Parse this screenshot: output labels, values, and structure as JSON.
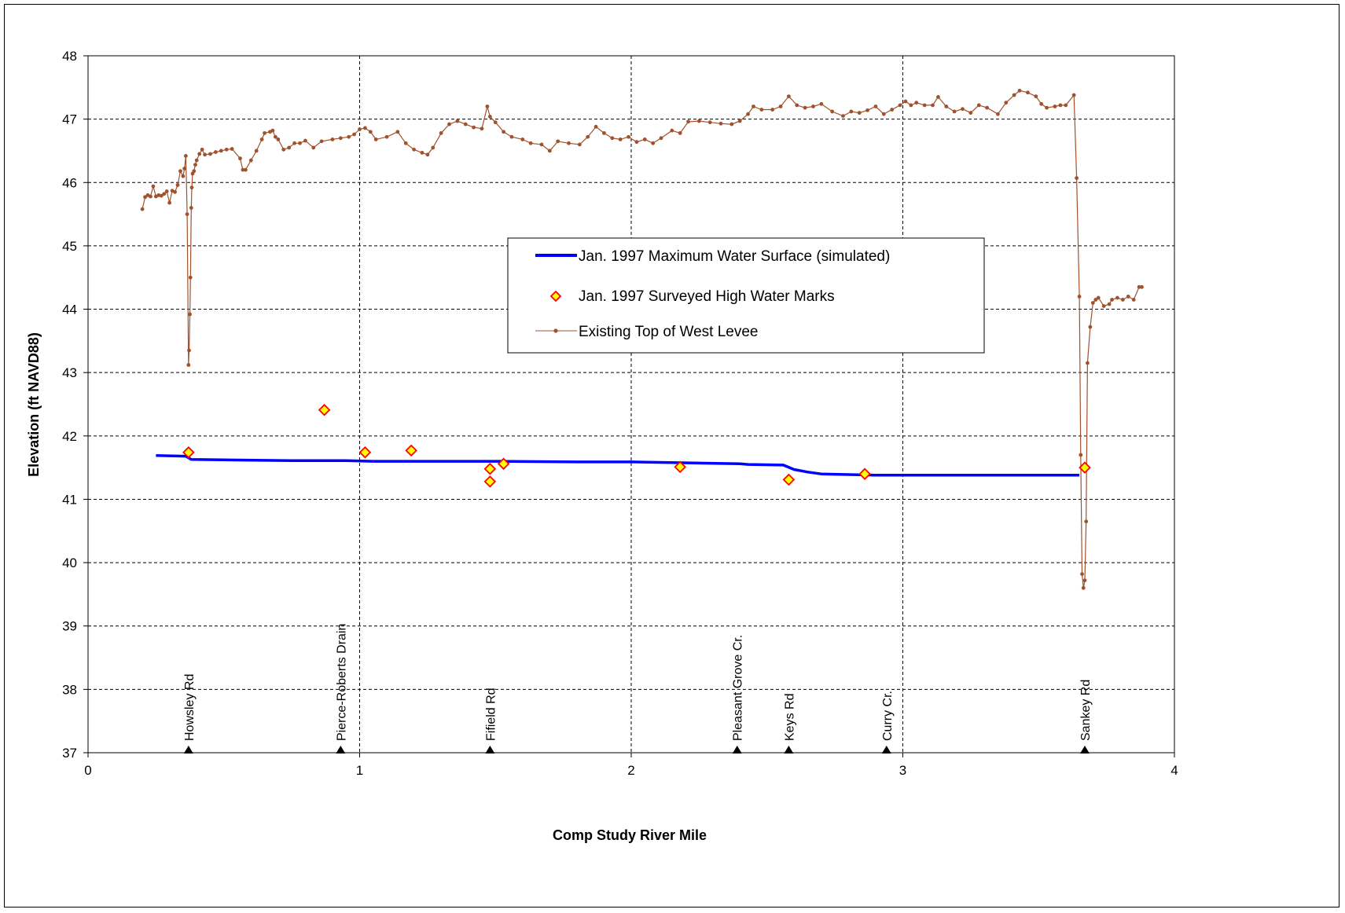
{
  "chart_data": {
    "type": "line",
    "title": "",
    "xlabel": "Comp Study River Mile",
    "ylabel": "Elevation (ft NAVD88)",
    "xlim": [
      0,
      4
    ],
    "ylim": [
      37,
      48
    ],
    "xticks": [
      0,
      1,
      2,
      3,
      4
    ],
    "yticks": [
      37,
      38,
      39,
      40,
      41,
      42,
      43,
      44,
      45,
      46,
      47,
      48
    ],
    "grid": true,
    "legend_position": "center-right",
    "series": [
      {
        "name": "Jan. 1997 Maximum Water Surface (simulated)",
        "style": "line",
        "color": "#0000ff",
        "points": [
          [
            0.25,
            41.69
          ],
          [
            0.36,
            41.68
          ],
          [
            0.38,
            41.63
          ],
          [
            0.55,
            41.62
          ],
          [
            0.75,
            41.61
          ],
          [
            0.95,
            41.61
          ],
          [
            1.05,
            41.6
          ],
          [
            1.5,
            41.6
          ],
          [
            1.8,
            41.59
          ],
          [
            2.0,
            41.59
          ],
          [
            2.4,
            41.56
          ],
          [
            2.43,
            41.55
          ],
          [
            2.56,
            41.54
          ],
          [
            2.6,
            41.47
          ],
          [
            2.65,
            41.43
          ],
          [
            2.7,
            41.4
          ],
          [
            2.8,
            41.39
          ],
          [
            2.9,
            41.38
          ],
          [
            3.2,
            41.38
          ],
          [
            3.5,
            41.38
          ],
          [
            3.65,
            41.38
          ]
        ]
      },
      {
        "name": "Jan. 1997 Surveyed High Water Marks",
        "style": "marker",
        "color": "#ffff00",
        "edge_color": "#ff0000",
        "points": [
          [
            0.37,
            41.74
          ],
          [
            0.87,
            42.41
          ],
          [
            1.02,
            41.74
          ],
          [
            1.19,
            41.77
          ],
          [
            1.48,
            41.48
          ],
          [
            1.48,
            41.28
          ],
          [
            1.53,
            41.56
          ],
          [
            2.18,
            41.51
          ],
          [
            2.58,
            41.31
          ],
          [
            2.86,
            41.4
          ],
          [
            3.67,
            41.5
          ]
        ]
      },
      {
        "name": "Existing Top of West Levee",
        "style": "line-marker",
        "color": "#a0522d",
        "points": [
          [
            0.2,
            45.58
          ],
          [
            0.21,
            45.77
          ],
          [
            0.22,
            45.8
          ],
          [
            0.23,
            45.78
          ],
          [
            0.24,
            45.94
          ],
          [
            0.25,
            45.78
          ],
          [
            0.26,
            45.8
          ],
          [
            0.27,
            45.79
          ],
          [
            0.28,
            45.82
          ],
          [
            0.29,
            45.86
          ],
          [
            0.3,
            45.68
          ],
          [
            0.31,
            45.87
          ],
          [
            0.32,
            45.85
          ],
          [
            0.33,
            45.96
          ],
          [
            0.34,
            46.18
          ],
          [
            0.35,
            46.1
          ],
          [
            0.355,
            46.22
          ],
          [
            0.36,
            46.42
          ],
          [
            0.365,
            45.5
          ],
          [
            0.37,
            43.12
          ],
          [
            0.372,
            43.35
          ],
          [
            0.375,
            43.92
          ],
          [
            0.377,
            44.5
          ],
          [
            0.38,
            45.6
          ],
          [
            0.382,
            45.92
          ],
          [
            0.385,
            46.14
          ],
          [
            0.39,
            46.18
          ],
          [
            0.395,
            46.28
          ],
          [
            0.4,
            46.35
          ],
          [
            0.41,
            46.45
          ],
          [
            0.42,
            46.52
          ],
          [
            0.43,
            46.44
          ],
          [
            0.45,
            46.45
          ],
          [
            0.47,
            46.48
          ],
          [
            0.49,
            46.5
          ],
          [
            0.51,
            46.52
          ],
          [
            0.53,
            46.53
          ],
          [
            0.56,
            46.38
          ],
          [
            0.57,
            46.2
          ],
          [
            0.58,
            46.2
          ],
          [
            0.6,
            46.35
          ],
          [
            0.62,
            46.5
          ],
          [
            0.64,
            46.68
          ],
          [
            0.65,
            46.78
          ],
          [
            0.67,
            46.8
          ],
          [
            0.68,
            46.82
          ],
          [
            0.69,
            46.72
          ],
          [
            0.7,
            46.68
          ],
          [
            0.72,
            46.52
          ],
          [
            0.74,
            46.55
          ],
          [
            0.76,
            46.62
          ],
          [
            0.78,
            46.62
          ],
          [
            0.8,
            46.66
          ],
          [
            0.83,
            46.55
          ],
          [
            0.86,
            46.65
          ],
          [
            0.9,
            46.68
          ],
          [
            0.93,
            46.7
          ],
          [
            0.96,
            46.72
          ],
          [
            0.98,
            46.76
          ],
          [
            1.0,
            46.84
          ],
          [
            1.02,
            46.86
          ],
          [
            1.04,
            46.8
          ],
          [
            1.06,
            46.68
          ],
          [
            1.1,
            46.72
          ],
          [
            1.14,
            46.8
          ],
          [
            1.17,
            46.62
          ],
          [
            1.2,
            46.52
          ],
          [
            1.23,
            46.47
          ],
          [
            1.25,
            46.44
          ],
          [
            1.27,
            46.55
          ],
          [
            1.3,
            46.78
          ],
          [
            1.33,
            46.92
          ],
          [
            1.36,
            46.97
          ],
          [
            1.39,
            46.92
          ],
          [
            1.42,
            46.87
          ],
          [
            1.45,
            46.85
          ],
          [
            1.47,
            47.2
          ],
          [
            1.48,
            47.04
          ],
          [
            1.5,
            46.95
          ],
          [
            1.53,
            46.8
          ],
          [
            1.56,
            46.72
          ],
          [
            1.6,
            46.68
          ],
          [
            1.63,
            46.62
          ],
          [
            1.67,
            46.6
          ],
          [
            1.7,
            46.5
          ],
          [
            1.73,
            46.65
          ],
          [
            1.77,
            46.62
          ],
          [
            1.81,
            46.6
          ],
          [
            1.84,
            46.72
          ],
          [
            1.87,
            46.88
          ],
          [
            1.9,
            46.78
          ],
          [
            1.93,
            46.7
          ],
          [
            1.96,
            46.68
          ],
          [
            1.99,
            46.72
          ],
          [
            2.02,
            46.64
          ],
          [
            2.05,
            46.68
          ],
          [
            2.08,
            46.62
          ],
          [
            2.11,
            46.7
          ],
          [
            2.15,
            46.82
          ],
          [
            2.18,
            46.78
          ],
          [
            2.21,
            46.96
          ],
          [
            2.25,
            46.97
          ],
          [
            2.29,
            46.95
          ],
          [
            2.33,
            46.93
          ],
          [
            2.37,
            46.92
          ],
          [
            2.4,
            46.97
          ],
          [
            2.43,
            47.08
          ],
          [
            2.45,
            47.2
          ],
          [
            2.48,
            47.15
          ],
          [
            2.52,
            47.15
          ],
          [
            2.55,
            47.2
          ],
          [
            2.58,
            47.36
          ],
          [
            2.61,
            47.22
          ],
          [
            2.64,
            47.18
          ],
          [
            2.67,
            47.2
          ],
          [
            2.7,
            47.24
          ],
          [
            2.74,
            47.12
          ],
          [
            2.78,
            47.05
          ],
          [
            2.81,
            47.12
          ],
          [
            2.84,
            47.1
          ],
          [
            2.87,
            47.14
          ],
          [
            2.9,
            47.2
          ],
          [
            2.93,
            47.08
          ],
          [
            2.96,
            47.15
          ],
          [
            2.99,
            47.22
          ],
          [
            3.01,
            47.28
          ],
          [
            3.03,
            47.22
          ],
          [
            3.05,
            47.26
          ],
          [
            3.08,
            47.22
          ],
          [
            3.11,
            47.22
          ],
          [
            3.13,
            47.35
          ],
          [
            3.16,
            47.2
          ],
          [
            3.19,
            47.12
          ],
          [
            3.22,
            47.16
          ],
          [
            3.25,
            47.1
          ],
          [
            3.28,
            47.22
          ],
          [
            3.31,
            47.18
          ],
          [
            3.35,
            47.08
          ],
          [
            3.38,
            47.26
          ],
          [
            3.41,
            47.38
          ],
          [
            3.43,
            47.45
          ],
          [
            3.46,
            47.42
          ],
          [
            3.49,
            47.36
          ],
          [
            3.51,
            47.24
          ],
          [
            3.53,
            47.18
          ],
          [
            3.56,
            47.2
          ],
          [
            3.58,
            47.22
          ],
          [
            3.6,
            47.22
          ],
          [
            3.63,
            47.38
          ],
          [
            3.64,
            46.07
          ],
          [
            3.65,
            44.2
          ],
          [
            3.655,
            41.7
          ],
          [
            3.66,
            39.82
          ],
          [
            3.665,
            39.6
          ],
          [
            3.67,
            39.72
          ],
          [
            3.675,
            40.65
          ],
          [
            3.68,
            43.15
          ],
          [
            3.69,
            43.72
          ],
          [
            3.7,
            44.1
          ],
          [
            3.71,
            44.15
          ],
          [
            3.72,
            44.18
          ],
          [
            3.74,
            44.05
          ],
          [
            3.76,
            44.08
          ],
          [
            3.77,
            44.15
          ],
          [
            3.79,
            44.18
          ],
          [
            3.81,
            44.15
          ],
          [
            3.83,
            44.2
          ],
          [
            3.85,
            44.15
          ],
          [
            3.87,
            44.35
          ],
          [
            3.88,
            44.35
          ]
        ]
      }
    ],
    "annotations": [
      {
        "label": "Howsley Rd",
        "x": 0.37
      },
      {
        "label": "Pierce-Roberts Drain",
        "x": 0.93
      },
      {
        "label": "Fifield Rd",
        "x": 1.48
      },
      {
        "label": "Pleasant Grove Cr.",
        "x": 2.39
      },
      {
        "label": "Keys Rd",
        "x": 2.58
      },
      {
        "label": "Curry Cr.",
        "x": 2.94
      },
      {
        "label": "Sankey Rd",
        "x": 3.67
      }
    ]
  }
}
